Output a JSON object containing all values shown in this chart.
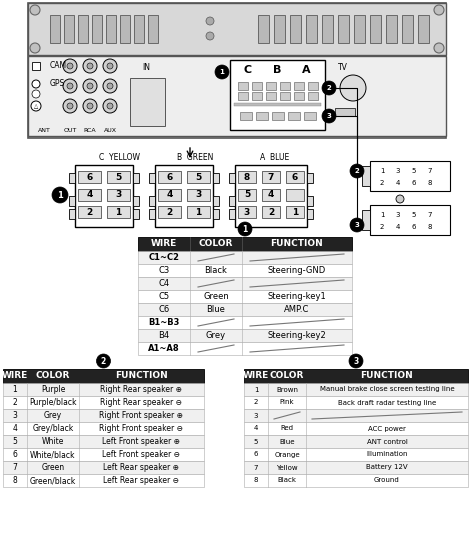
{
  "bg_color": "#ffffff",
  "table1_header": [
    "WIRE",
    "COLOR",
    "FUNCTION"
  ],
  "table1_rows": [
    [
      "C1~C2",
      "",
      ""
    ],
    [
      "C3",
      "Black",
      "Steering-GND"
    ],
    [
      "C4",
      "",
      ""
    ],
    [
      "C5",
      "Green",
      "Steering-key1"
    ],
    [
      "C6",
      "Blue",
      "AMP.C"
    ],
    [
      "B1~B3",
      "",
      ""
    ],
    [
      "B4",
      "Grey",
      "Steering-key2"
    ],
    [
      "A1~A8",
      "",
      ""
    ]
  ],
  "table2_header": [
    "WIRE",
    "COLOR",
    "FUNCTION"
  ],
  "table2_rows": [
    [
      "1",
      "Purple",
      "Right Rear speaker ⊕"
    ],
    [
      "2",
      "Purple/black",
      "Right Rear speaker ⊖"
    ],
    [
      "3",
      "Grey",
      "Right Front speaker ⊕"
    ],
    [
      "4",
      "Grey/black",
      "Right Front speaker ⊖"
    ],
    [
      "5",
      "White",
      "Left Front speaker ⊕"
    ],
    [
      "6",
      "White/black",
      "Left Front speaker ⊖"
    ],
    [
      "7",
      "Green",
      "Left Rear speaker ⊕"
    ],
    [
      "8",
      "Green/black",
      "Left Rear speaker ⊖"
    ]
  ],
  "table3_header": [
    "WIRE",
    "COLOR",
    "FUNCTION"
  ],
  "table3_rows": [
    [
      "1",
      "Brown",
      "Manual brake close screen testing line"
    ],
    [
      "2",
      "Pink",
      "Back draft radar testing line"
    ],
    [
      "3",
      "",
      ""
    ],
    [
      "4",
      "Red",
      "ACC power"
    ],
    [
      "5",
      "Blue",
      "ANT control"
    ],
    [
      "6",
      "Orange",
      "Illumination"
    ],
    [
      "7",
      "Yellow",
      "Battery 12V"
    ],
    [
      "8",
      "Black",
      "Ground"
    ]
  ]
}
